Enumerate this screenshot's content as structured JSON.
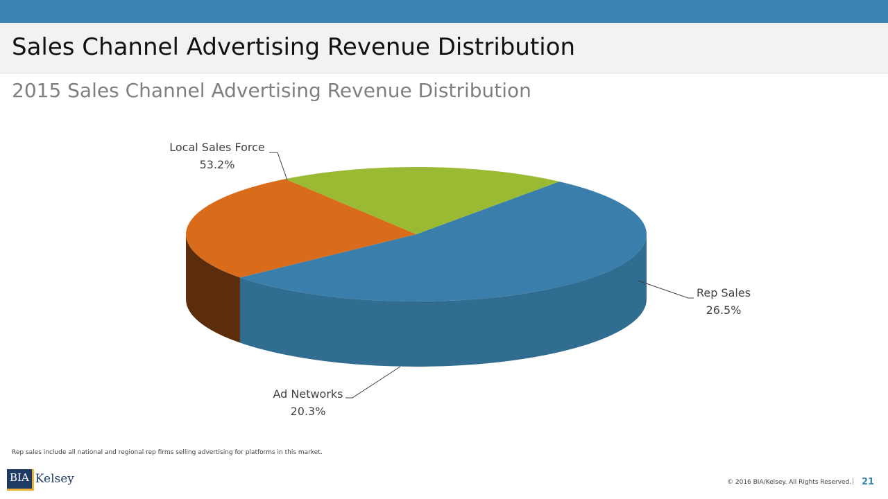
{
  "slide": {
    "title": "Sales Channel Advertising Revenue Distribution",
    "footnote": "Rep sales include all national and regional rep firms selling advertising for platforms in this market.",
    "copyright": "© 2016 BIA/Kelsey. All Rights Reserved.",
    "separator": "|",
    "page_number": "21",
    "logo": {
      "part1": "BIA",
      "part2": "Kelsey"
    }
  },
  "chart_data": {
    "type": "pie",
    "title": "2015 Sales Channel Advertising Revenue Distribution",
    "style": "3d",
    "slices": [
      {
        "label": "Local Sales Force",
        "value": 53.2,
        "value_label": "53.2%",
        "color": "#3a7fab"
      },
      {
        "label": "Rep Sales",
        "value": 26.5,
        "value_label": "26.5%",
        "color": "#d86c1a"
      },
      {
        "label": "Ad Networks",
        "value": 20.3,
        "value_label": "20.3%",
        "color": "#9aba33"
      }
    ]
  }
}
